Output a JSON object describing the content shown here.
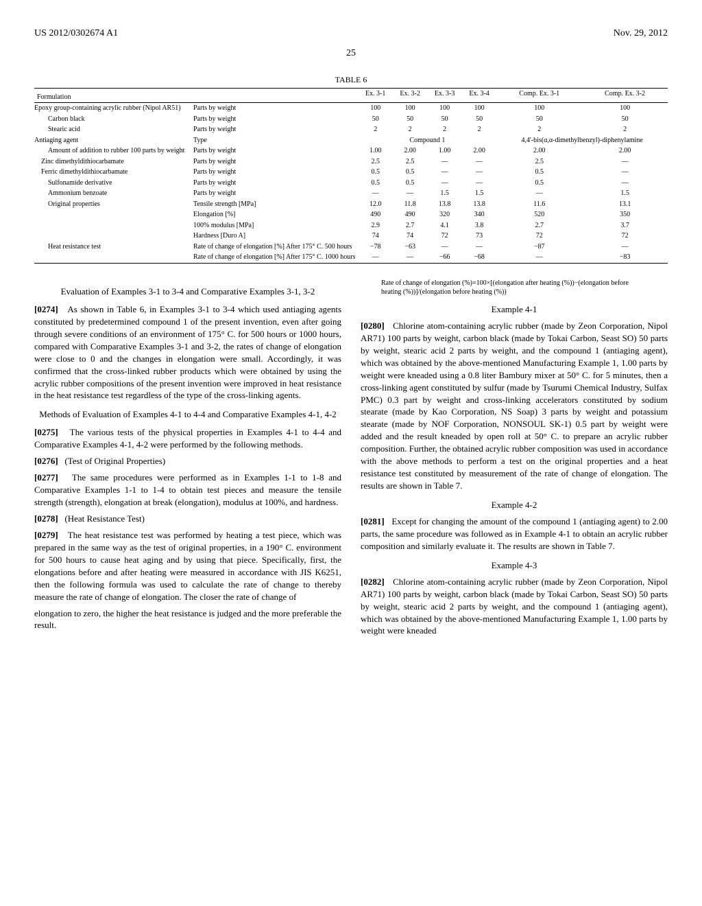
{
  "header": {
    "pub": "US 2012/0302674 A1",
    "date": "Nov. 29, 2012"
  },
  "page_number": "25",
  "table6": {
    "caption": "TABLE 6",
    "col_headers": [
      "Formulation",
      "",
      "Ex. 3-1",
      "Ex. 3-2",
      "Ex. 3-3",
      "Ex. 3-4",
      "Comp. Ex. 3-1",
      "Comp. Ex. 3-2"
    ],
    "rows": [
      {
        "label": "Epoxy group-containing acrylic rubber (Nipol AR51)",
        "unit": "Parts by weight",
        "vals": [
          "100",
          "100",
          "100",
          "100",
          "100",
          "100"
        ]
      },
      {
        "label": "Carbon black",
        "unit": "Parts by weight",
        "vals": [
          "50",
          "50",
          "50",
          "50",
          "50",
          "50"
        ],
        "indent": 2
      },
      {
        "label": "Stearic acid",
        "unit": "Parts by weight",
        "vals": [
          "2",
          "2",
          "2",
          "2",
          "2",
          "2"
        ],
        "indent": 2
      },
      {
        "label": "Antiaging agent",
        "unit": "Type",
        "vals": [
          "",
          "",
          "Compound 1",
          "",
          "4,4'-bis(α,α-dimethylbenzyl)-diphenylamine",
          ""
        ],
        "span": true
      },
      {
        "label": "Amount of addition to rubber 100 parts by weight",
        "unit": "Parts by weight",
        "vals": [
          "1.00",
          "2.00",
          "1.00",
          "2.00",
          "2.00",
          "2.00"
        ],
        "indent": 2
      },
      {
        "label": "Zinc dimethyldithiocarbamate",
        "unit": "Parts by weight",
        "vals": [
          "2.5",
          "2.5",
          "—",
          "—",
          "2.5",
          "—"
        ],
        "indent": 1
      },
      {
        "label": "Ferric dimethyldithiocarbamate",
        "unit": "Parts by weight",
        "vals": [
          "0.5",
          "0.5",
          "—",
          "—",
          "0.5",
          "—"
        ],
        "indent": 1
      },
      {
        "label": "Sulfonamide derivative",
        "unit": "Parts by weight",
        "vals": [
          "0.5",
          "0.5",
          "—",
          "—",
          "0.5",
          "—"
        ],
        "indent": 2
      },
      {
        "label": "Ammonium benzoate",
        "unit": "Parts by weight",
        "vals": [
          "—",
          "—",
          "1.5",
          "1.5",
          "—",
          "1.5"
        ],
        "indent": 2
      },
      {
        "label": "Original properties",
        "unit": "Tensile strength [MPa]",
        "vals": [
          "12.0",
          "11.8",
          "13.8",
          "13.8",
          "11.6",
          "13.1"
        ],
        "indent": 2
      },
      {
        "label": "",
        "unit": "Elongation [%]",
        "vals": [
          "490",
          "490",
          "320",
          "340",
          "520",
          "350"
        ]
      },
      {
        "label": "",
        "unit": "100% modulus [MPa]",
        "vals": [
          "2.9",
          "2.7",
          "4.1",
          "3.8",
          "2.7",
          "3.7"
        ]
      },
      {
        "label": "",
        "unit": "Hardness [Duro A]",
        "vals": [
          "74",
          "74",
          "72",
          "73",
          "72",
          "72"
        ]
      },
      {
        "label": "Heat resistance test",
        "unit": "Rate of change of elongation [%] After 175° C. 500 hours",
        "vals": [
          "−78",
          "−63",
          "—",
          "—",
          "−87",
          "—"
        ],
        "indent": 2
      },
      {
        "label": "",
        "unit": "Rate of change of elongation [%] After 175° C. 1000 hours",
        "vals": [
          "—",
          "—",
          "−66",
          "−68",
          "—",
          "−83"
        ]
      }
    ]
  },
  "col_left": {
    "sec1_title": "Evaluation of Examples 3-1 to 3-4 and Comparative Examples 3-1, 3-2",
    "p0274_num": "[0274]",
    "p0274": "As shown in Table 6, in Examples 3-1 to 3-4 which used antiaging agents constituted by predetermined compound 1 of the present invention, even after going through severe conditions of an environment of 175° C. for 500 hours or 1000 hours, compared with Comparative Examples 3-1 and 3-2, the rates of change of elongation were close to 0 and the changes in elongation were small. Accordingly, it was confirmed that the cross-linked rubber products which were obtained by using the acrylic rubber compositions of the present invention were improved in heat resistance in the heat resistance test regardless of the type of the cross-linking agents.",
    "sec2_title": "Methods of Evaluation of Examples 4-1 to 4-4 and Comparative Examples 4-1, 4-2",
    "p0275_num": "[0275]",
    "p0275": "The various tests of the physical properties in Examples 4-1 to 4-4 and Comparative Examples 4-1, 4-2 were performed by the following methods.",
    "p0276_num": "[0276]",
    "p0276": "(Test of Original Properties)",
    "p0277_num": "[0277]",
    "p0277": "The same procedures were performed as in Examples 1-1 to 1-8 and Comparative Examples 1-1 to 1-4 to obtain test pieces and measure the tensile strength (strength), elongation at break (elongation), modulus at 100%, and hardness.",
    "p0278_num": "[0278]",
    "p0278": "(Heat Resistance Test)",
    "p0279_num": "[0279]",
    "p0279": "The heat resistance test was performed by heating a test piece, which was prepared in the same way as the test of original properties, in a 190° C. environment for 500 hours to cause heat aging and by using that piece. Specifically, first, the elongations before and after heating were measured in accordance with JIS K6251, then the following formula was used to calculate the rate of change to thereby measure the rate of change of elongation. The closer the rate of change of"
  },
  "col_right": {
    "p_cont": "elongation to zero, the higher the heat resistance is judged and the more preferable the result.",
    "formula": "Rate of change of elongation (%)=100×[(elongation after heating (%))−(elongation before heating (%))]/(elongation before heating (%))",
    "ex41_title": "Example 4-1",
    "p0280_num": "[0280]",
    "p0280": "Chlorine atom-containing acrylic rubber (made by Zeon Corporation, Nipol AR71) 100 parts by weight, carbon black (made by Tokai Carbon, Seast SO) 50 parts by weight, stearic acid 2 parts by weight, and the compound 1 (antiaging agent), which was obtained by the above-mentioned Manufacturing Example 1, 1.00 parts by weight were kneaded using a 0.8 liter Bambury mixer at 50° C. for 5 minutes, then a cross-linking agent constituted by sulfur (made by Tsurumi Chemical Industry, Sulfax PMC) 0.3 part by weight and cross-linking accelerators constituted by sodium stearate (made by Kao Corporation, NS Soap) 3 parts by weight and potassium stearate (made by NOF Corporation, NONSOUL SK-1) 0.5 part by weight were added and the result kneaded by open roll at 50° C. to prepare an acrylic rubber composition. Further, the obtained acrylic rubber composition was used in accordance with the above methods to perform a test on the original properties and a heat resistance test constituted by measurement of the rate of change of elongation. The results are shown in Table 7.",
    "ex42_title": "Example 4-2",
    "p0281_num": "[0281]",
    "p0281": "Except for changing the amount of the compound 1 (antiaging agent) to 2.00 parts, the same procedure was followed as in Example 4-1 to obtain an acrylic rubber composition and similarly evaluate it. The results are shown in Table 7.",
    "ex43_title": "Example 4-3",
    "p0282_num": "[0282]",
    "p0282": "Chlorine atom-containing acrylic rubber (made by Zeon Corporation, Nipol AR71) 100 parts by weight, carbon black (made by Tokai Carbon, Seast SO) 50 parts by weight, stearic acid 2 parts by weight, and the compound 1 (antiaging agent), which was obtained by the above-mentioned Manufacturing Example 1, 1.00 parts by weight were kneaded"
  }
}
